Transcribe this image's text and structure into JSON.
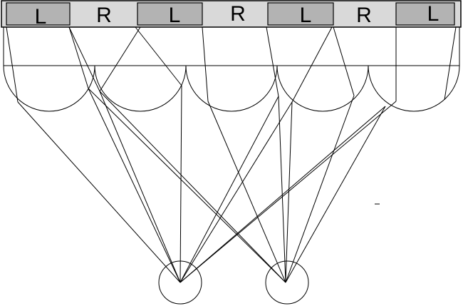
{
  "strip": {
    "labels": [
      "L",
      "R",
      "L",
      "R",
      "L",
      "R",
      "L"
    ],
    "colors": {
      "background": "#d9d9d9",
      "left_panel": "#b3b3b3",
      "right_panel": "#d9d9d9",
      "stroke": "#000000"
    }
  },
  "lens_count": 5,
  "eye_count": 2
}
